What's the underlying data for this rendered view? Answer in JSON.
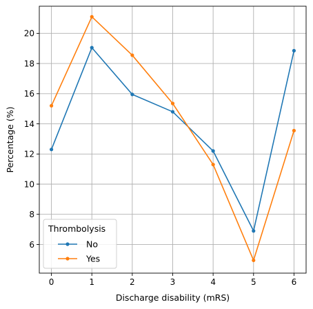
{
  "chart_data": {
    "type": "line",
    "title": "",
    "xlabel": "Discharge disability (mRS)",
    "ylabel": "Percentage (%)",
    "x": [
      0,
      1,
      2,
      3,
      4,
      5,
      6
    ],
    "xlim": [
      -0.3,
      6.3
    ],
    "ylim": [
      4.1,
      21.8
    ],
    "xticks": [
      "0",
      "1",
      "2",
      "3",
      "4",
      "5",
      "6"
    ],
    "yticks": [
      "6",
      "8",
      "10",
      "12",
      "14",
      "16",
      "18",
      "20"
    ],
    "grid": true,
    "legend": {
      "title": "Thrombolysis",
      "placement": "lower-left"
    },
    "series": [
      {
        "name": "No",
        "color": "#1f77b4",
        "values": [
          12.3,
          19.05,
          15.95,
          14.8,
          12.2,
          6.9,
          18.85
        ]
      },
      {
        "name": "Yes",
        "color": "#ff7f0e",
        "values": [
          15.2,
          21.1,
          18.55,
          15.35,
          11.3,
          4.95,
          13.55
        ]
      }
    ]
  }
}
